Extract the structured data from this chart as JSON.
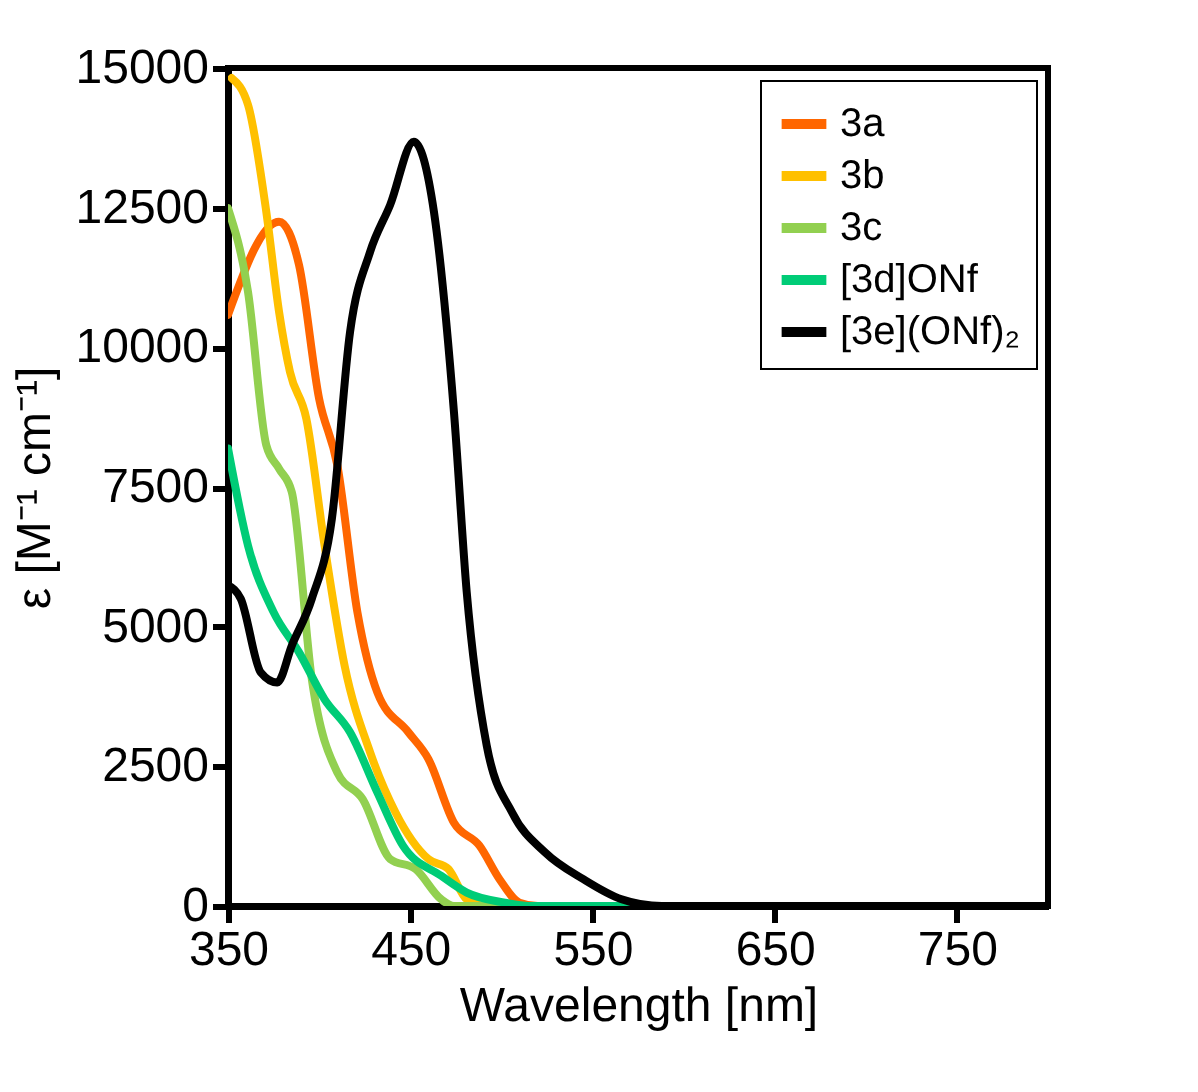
{
  "chart_data": {
    "type": "line",
    "xlabel": "Wavelength  [nm]",
    "ylabel": "ε [M⁻¹ cm⁻¹]",
    "xlim": [
      350,
      800
    ],
    "xticks": [
      350,
      450,
      550,
      650,
      750
    ],
    "ylim": [
      0,
      15000
    ],
    "yticks": [
      0,
      2500,
      5000,
      7500,
      10000,
      12500,
      15000
    ],
    "grid": false,
    "legend": "top right",
    "marker": "none",
    "line_style": "solid",
    "series": [
      {
        "name": "3a",
        "color": "#ff6600",
        "x": [
          350,
          378,
          389,
          400,
          410,
          421,
          432,
          449,
          460,
          474,
          488,
          499,
          510,
          520,
          800
        ],
        "values": [
          10580,
          12250,
          11470,
          9080,
          7890,
          5260,
          3820,
          3110,
          2630,
          1490,
          1080,
          480,
          60,
          0,
          0
        ]
      },
      {
        "name": "3b",
        "color": "#ffc000",
        "x": [
          352,
          361,
          371,
          378,
          384,
          393,
          403,
          414,
          428,
          442,
          460,
          471,
          481,
          492,
          800
        ],
        "values": [
          14820,
          14340,
          12430,
          10640,
          9560,
          8720,
          6450,
          4300,
          2750,
          1670,
          840,
          660,
          120,
          0,
          0
        ]
      },
      {
        "name": "3c",
        "color": "#92d050",
        "x": [
          350,
          361,
          371,
          378,
          385,
          396,
          410,
          424,
          439,
          453,
          467,
          474,
          800
        ],
        "values": [
          12490,
          10990,
          8250,
          7830,
          7410,
          4060,
          2390,
          1910,
          840,
          660,
          120,
          0,
          0
        ]
      },
      {
        "name": "[3d]ONf",
        "color": "#00cc77",
        "x": [
          350,
          361,
          375,
          389,
          403,
          417,
          432,
          446,
          467,
          481,
          502,
          515,
          800
        ],
        "values": [
          8190,
          6450,
          5260,
          4540,
          3700,
          3110,
          2030,
          1080,
          540,
          240,
          60,
          0,
          0
        ]
      },
      {
        "name": "[3e](ONf)₂",
        "color": "#000000",
        "x": [
          350,
          357,
          368,
          377,
          385,
          396,
          407,
          417,
          428,
          439,
          452,
          463,
          474,
          481,
          492,
          506,
          524,
          545,
          566,
          588,
          800
        ],
        "values": [
          5740,
          5500,
          4180,
          4000,
          4660,
          5500,
          6930,
          10280,
          11710,
          12550,
          13680,
          12430,
          8840,
          5620,
          2870,
          1670,
          960,
          480,
          120,
          0,
          0
        ]
      }
    ]
  }
}
